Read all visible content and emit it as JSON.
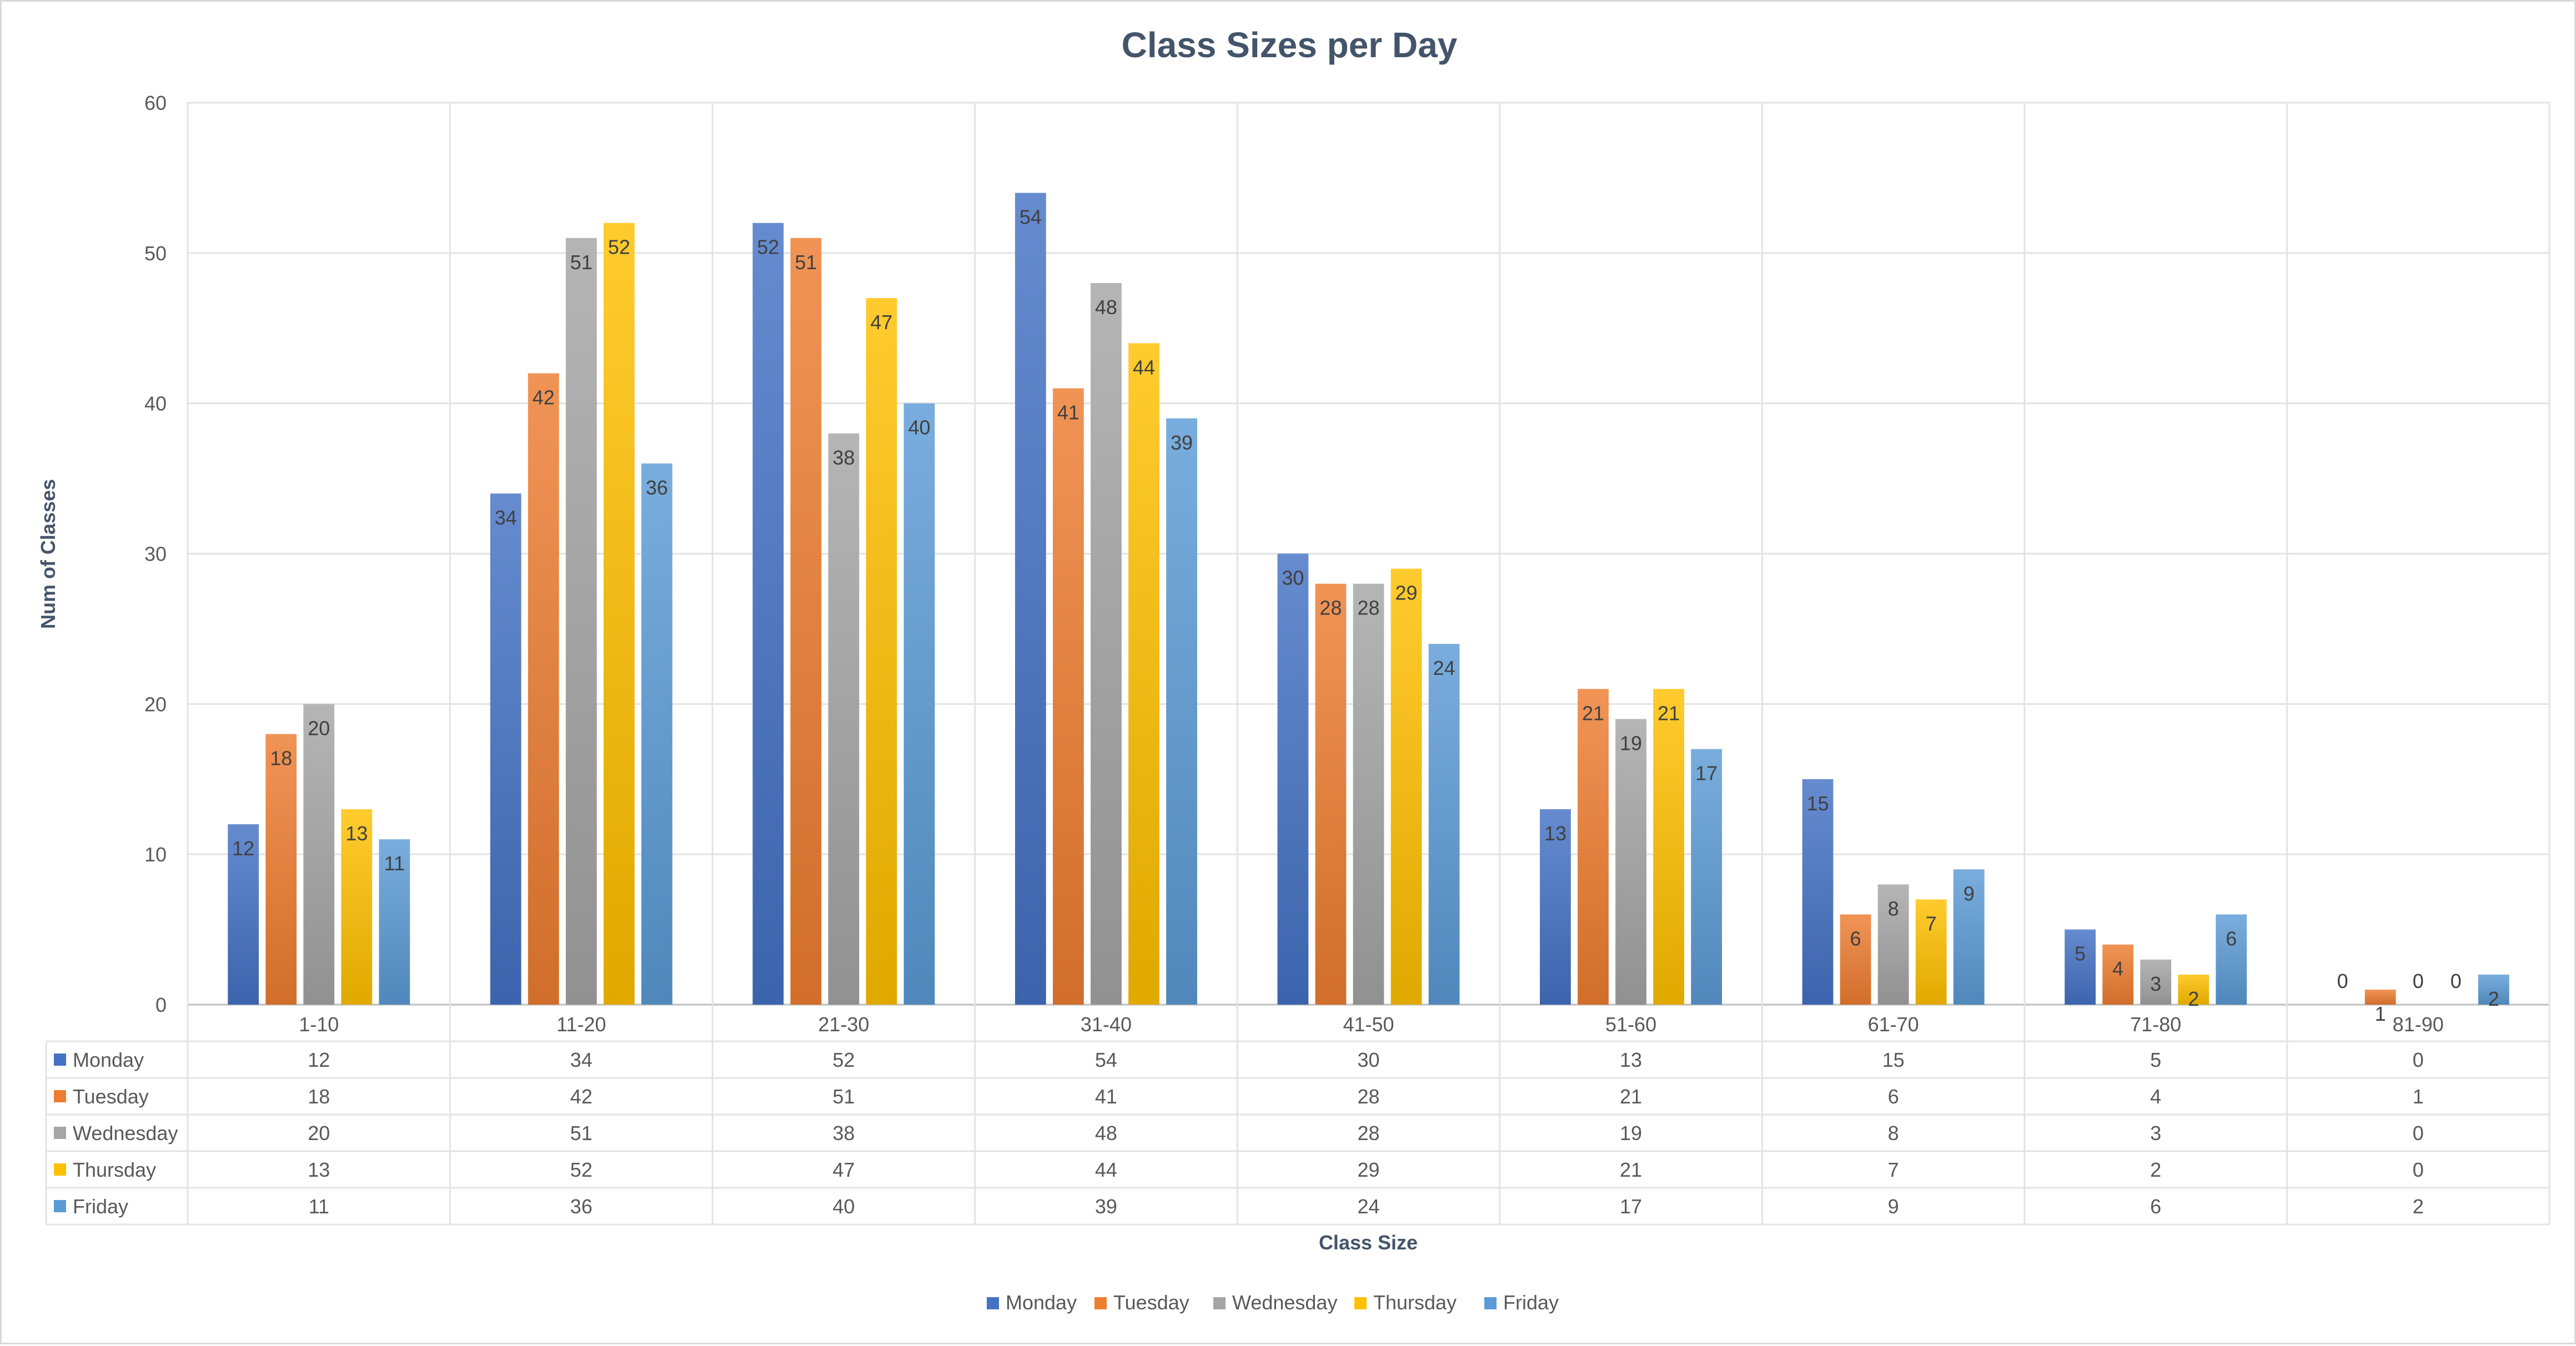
{
  "chart_data": {
    "type": "bar",
    "title": "Class Sizes per Day",
    "xlabel": "Class Size",
    "ylabel": "Num of Classes",
    "ylim": [
      0,
      60
    ],
    "yticks": [
      0,
      10,
      20,
      30,
      40,
      50,
      60
    ],
    "grid": true,
    "legend_position": "bottom",
    "data_table": true,
    "categories": [
      "1-10",
      "11-20",
      "21-30",
      "31-40",
      "41-50",
      "51-60",
      "61-70",
      "71-80",
      "81-90"
    ],
    "series": [
      {
        "name": "Monday",
        "color": "#4472c4",
        "values": [
          12,
          34,
          52,
          54,
          30,
          13,
          15,
          5,
          0
        ]
      },
      {
        "name": "Tuesday",
        "color": "#ed7d31",
        "values": [
          18,
          42,
          51,
          41,
          28,
          21,
          6,
          4,
          1
        ]
      },
      {
        "name": "Wednesday",
        "color": "#a5a5a5",
        "values": [
          20,
          51,
          38,
          48,
          28,
          19,
          8,
          3,
          0
        ]
      },
      {
        "name": "Thursday",
        "color": "#ffc000",
        "values": [
          13,
          52,
          47,
          44,
          29,
          21,
          7,
          2,
          0
        ]
      },
      {
        "name": "Friday",
        "color": "#5b9bd5",
        "values": [
          11,
          36,
          40,
          39,
          24,
          17,
          9,
          6,
          2
        ]
      }
    ]
  }
}
